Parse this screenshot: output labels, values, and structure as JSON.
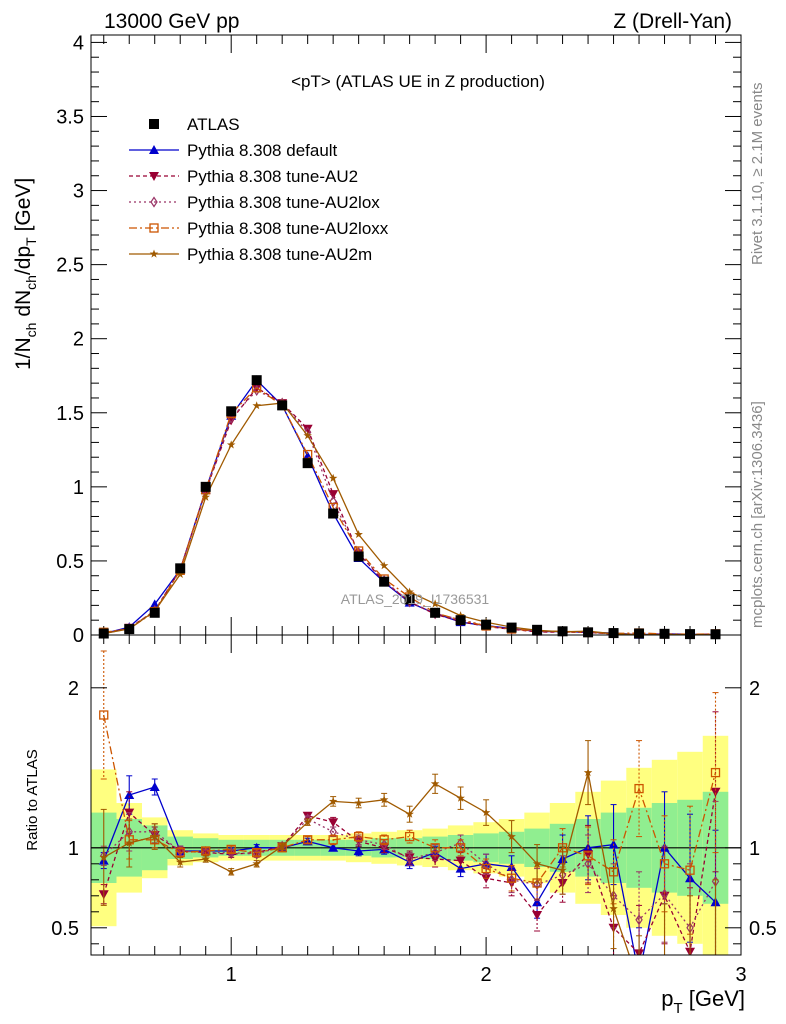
{
  "header": {
    "left": "13000 GeV pp",
    "right": "Z (Drell-Yan)"
  },
  "side_labels": {
    "rivet": "Rivet 3.1.10, ≥ 2.1M events",
    "source": "mcplots.cern.ch [arXiv:1306.3436]"
  },
  "chart_data": {
    "type": "line",
    "title": "<pT> (ATLAS UE in Z production)",
    "watermark": "ATLAS_2019_I1736531",
    "x_label": "p_T [GeV]",
    "y_label": "1/N_ch dN_ch/dp_T [GeV]",
    "ratio_y_label": "Ratio to ATLAS",
    "xlim": [
      0.45,
      3.0
    ],
    "ylim": [
      0,
      4.05
    ],
    "ratio_ylim": [
      0.33,
      2.33
    ],
    "x_ticks": [
      1,
      2,
      3
    ],
    "y_ticks": [
      0,
      0.5,
      1,
      1.5,
      2,
      2.5,
      3,
      3.5,
      4
    ],
    "ratio_ticks": [
      0.5,
      1,
      2
    ],
    "x": [
      0.5,
      0.6,
      0.7,
      0.8,
      0.9,
      1.0,
      1.1,
      1.2,
      1.3,
      1.4,
      1.5,
      1.6,
      1.7,
      1.8,
      1.9,
      2.0,
      2.1,
      2.2,
      2.3,
      2.4,
      2.5,
      2.6,
      2.7,
      2.8,
      2.9
    ],
    "data": {
      "name": "ATLAS",
      "values": [
        0.01,
        0.04,
        0.15,
        0.45,
        1.0,
        1.51,
        1.72,
        1.55,
        1.16,
        0.82,
        0.53,
        0.36,
        0.24,
        0.15,
        0.1,
        0.07,
        0.05,
        0.035,
        0.025,
        0.018,
        0.013,
        0.01,
        0.008,
        0.006,
        0.005
      ]
    },
    "band_inner": [
      0.22,
      0.18,
      0.14,
      0.07,
      0.06,
      0.05,
      0.05,
      0.05,
      0.05,
      0.05,
      0.05,
      0.06,
      0.06,
      0.07,
      0.08,
      0.09,
      0.1,
      0.12,
      0.15,
      0.18,
      0.22,
      0.25,
      0.28,
      0.3,
      0.35
    ],
    "band_outer": [
      0.49,
      0.28,
      0.19,
      0.11,
      0.09,
      0.08,
      0.08,
      0.08,
      0.08,
      0.08,
      0.09,
      0.1,
      0.11,
      0.12,
      0.14,
      0.16,
      0.18,
      0.22,
      0.28,
      0.35,
      0.42,
      0.5,
      0.55,
      0.6,
      0.7
    ],
    "series": [
      {
        "name": "Pythia 8.308 default",
        "color": "#0000cc",
        "dash": "",
        "marker": "triangle-up",
        "ratio": [
          0.92,
          1.33,
          1.38,
          0.98,
          0.98,
          0.98,
          1.0,
          1.0,
          1.04,
          1.0,
          0.98,
          0.99,
          0.91,
          0.97,
          0.87,
          0.9,
          0.88,
          0.66,
          0.93,
          1.0,
          1.02,
          0.2,
          1.0,
          0.81,
          0.66
        ],
        "ratio_err": [
          0.05,
          0.12,
          0.05,
          0.03,
          0.02,
          0.02,
          0.02,
          0.02,
          0.02,
          0.02,
          0.03,
          0.03,
          0.04,
          0.04,
          0.05,
          0.06,
          0.07,
          0.1,
          0.15,
          0.2,
          0.25,
          0.3,
          0.35,
          0.4,
          0.45
        ]
      },
      {
        "name": "Pythia 8.308 tune-AU2",
        "color": "#990033",
        "dash": "4,3",
        "marker": "triangle-down",
        "ratio": [
          0.71,
          1.22,
          1.08,
          0.98,
          0.97,
          0.96,
          0.97,
          1.01,
          1.2,
          1.16,
          1.04,
          1.0,
          0.94,
          0.93,
          0.92,
          0.81,
          0.78,
          0.58,
          0.78,
          0.96,
          0.5,
          0.34,
          0.7,
          0.35,
          1.35
        ],
        "ratio_err": [
          0.06,
          0.13,
          0.05,
          0.03,
          0.02,
          0.02,
          0.02,
          0.02,
          0.02,
          0.03,
          0.03,
          0.03,
          0.04,
          0.05,
          0.05,
          0.06,
          0.08,
          0.1,
          0.12,
          0.18,
          0.2,
          0.3,
          0.3,
          0.4,
          0.5
        ]
      },
      {
        "name": "Pythia 8.308 tune-AU2lox",
        "color": "#993366",
        "dash": "2,3",
        "marker": "diamond",
        "ratio": [
          0.95,
          1.1,
          1.1,
          0.98,
          0.97,
          0.97,
          0.96,
          1.01,
          1.18,
          1.1,
          1.05,
          1.02,
          0.93,
          0.97,
          1.03,
          0.9,
          0.8,
          0.77,
          0.83,
          0.9,
          0.7,
          0.55,
          0.71,
          0.5,
          0.79
        ],
        "ratio_err": [
          0.06,
          0.12,
          0.05,
          0.03,
          0.02,
          0.02,
          0.02,
          0.02,
          0.02,
          0.03,
          0.03,
          0.03,
          0.04,
          0.05,
          0.05,
          0.06,
          0.08,
          0.1,
          0.12,
          0.18,
          0.2,
          0.3,
          0.3,
          0.4,
          0.5
        ]
      },
      {
        "name": "Pythia 8.308 tune-AU2loxx",
        "color": "#cc5500",
        "dash": "8,3,2,3",
        "marker": "square-open",
        "ratio": [
          1.83,
          1.05,
          1.05,
          0.97,
          0.98,
          0.99,
          0.97,
          1.0,
          1.05,
          1.05,
          1.07,
          1.05,
          1.07,
          1.0,
          1.0,
          0.87,
          0.81,
          0.78,
          1.0,
          0.95,
          0.85,
          1.37,
          0.9,
          0.86,
          1.47
        ],
        "ratio_err": [
          0.4,
          0.12,
          0.05,
          0.03,
          0.02,
          0.02,
          0.02,
          0.02,
          0.02,
          0.03,
          0.03,
          0.03,
          0.04,
          0.05,
          0.05,
          0.06,
          0.08,
          0.1,
          0.12,
          0.18,
          0.2,
          0.3,
          0.3,
          0.4,
          0.5
        ]
      },
      {
        "name": "Pythia 8.308 tune-AU2m",
        "color": "#a05a00",
        "dash": "",
        "marker": "star",
        "ratio": [
          0.94,
          1.03,
          1.07,
          0.91,
          0.93,
          0.85,
          0.9,
          1.01,
          1.16,
          1.29,
          1.28,
          1.3,
          1.21,
          1.4,
          1.31,
          1.22,
          1.07,
          0.9,
          0.86,
          1.47,
          0.62,
          0.15,
          0.3,
          0.3,
          0.3
        ],
        "ratio_err": [
          0.3,
          0.15,
          0.08,
          0.03,
          0.02,
          0.02,
          0.02,
          0.02,
          0.02,
          0.03,
          0.03,
          0.04,
          0.05,
          0.06,
          0.07,
          0.08,
          0.1,
          0.12,
          0.15,
          0.2,
          0.25,
          0.3,
          0.35,
          0.4,
          0.5
        ]
      }
    ]
  }
}
